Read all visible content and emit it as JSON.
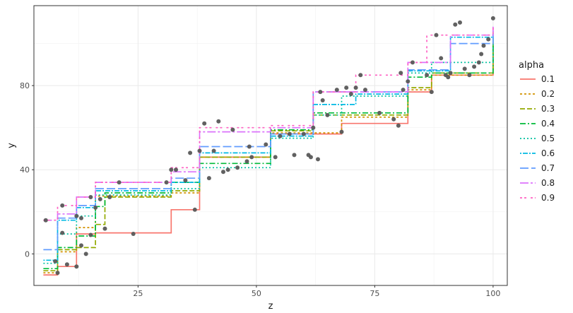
{
  "chart_data": {
    "type": "step",
    "xlabel": "z",
    "ylabel": "y",
    "xlim": [
      3,
      103
    ],
    "ylim": [
      -15,
      118
    ],
    "x_ticks": [
      25,
      50,
      75,
      100
    ],
    "y_ticks": [
      0,
      40,
      80
    ],
    "x_minor_ticks": [
      12.5,
      37.5,
      62.5,
      87.5
    ],
    "y_minor_ticks": [
      -20,
      20,
      60,
      100
    ],
    "grid": true,
    "legend": {
      "title": "alpha",
      "placement": "right",
      "entries": [
        "0.1",
        "0.2",
        "0.3",
        "0.4",
        "0.5",
        "0.6",
        "0.7",
        "0.8",
        "0.9"
      ]
    },
    "points_color": "#595959",
    "points": [
      [
        5.5,
        16
      ],
      [
        7.5,
        -3.5
      ],
      [
        8,
        -9
      ],
      [
        9,
        23
      ],
      [
        9,
        10
      ],
      [
        10,
        -5
      ],
      [
        12,
        18
      ],
      [
        12,
        -6
      ],
      [
        13,
        17
      ],
      [
        13,
        4
      ],
      [
        14,
        0
      ],
      [
        15,
        9
      ],
      [
        15,
        27
      ],
      [
        16,
        22
      ],
      [
        17,
        26
      ],
      [
        18,
        12
      ],
      [
        19,
        27
      ],
      [
        21,
        34
      ],
      [
        24,
        9.5
      ],
      [
        31,
        34
      ],
      [
        32,
        40
      ],
      [
        33,
        40
      ],
      [
        35,
        35
      ],
      [
        36,
        48
      ],
      [
        37,
        21
      ],
      [
        38,
        49
      ],
      [
        39,
        62
      ],
      [
        40,
        36
      ],
      [
        41,
        49
      ],
      [
        42,
        63
      ],
      [
        43,
        39
      ],
      [
        44,
        40
      ],
      [
        45,
        59
      ],
      [
        46,
        41
      ],
      [
        48,
        44
      ],
      [
        48.5,
        51
      ],
      [
        49,
        46
      ],
      [
        52,
        52
      ],
      [
        54,
        46
      ],
      [
        55,
        56
      ],
      [
        57,
        57
      ],
      [
        58,
        47
      ],
      [
        60,
        57
      ],
      [
        61,
        47
      ],
      [
        61.5,
        46
      ],
      [
        62,
        60
      ],
      [
        63,
        45
      ],
      [
        63.5,
        77
      ],
      [
        64,
        73
      ],
      [
        65,
        66
      ],
      [
        67,
        78
      ],
      [
        68,
        58
      ],
      [
        69,
        79
      ],
      [
        70,
        76
      ],
      [
        71,
        79
      ],
      [
        72,
        85
      ],
      [
        73,
        78
      ],
      [
        76,
        67
      ],
      [
        79,
        64
      ],
      [
        80,
        61
      ],
      [
        80.5,
        86
      ],
      [
        81,
        78
      ],
      [
        82,
        82
      ],
      [
        83,
        91
      ],
      [
        86,
        85
      ],
      [
        87,
        77
      ],
      [
        88,
        104
      ],
      [
        89,
        93
      ],
      [
        90,
        85
      ],
      [
        90.5,
        84
      ],
      [
        91,
        86
      ],
      [
        92,
        109
      ],
      [
        93,
        110
      ],
      [
        94,
        88
      ],
      [
        95,
        85
      ],
      [
        96,
        89
      ],
      [
        97,
        91
      ],
      [
        97.5,
        95
      ],
      [
        98,
        99
      ],
      [
        99,
        102
      ],
      [
        100,
        112
      ]
    ],
    "series": [
      {
        "name": "0.1",
        "color": "#F8766D",
        "dash": "solid",
        "x": [
          5,
          8,
          12,
          16,
          32,
          38,
          53,
          68,
          82,
          87,
          100
        ],
        "y": [
          -10,
          -6,
          9.5,
          10,
          21,
          46,
          57,
          62,
          77,
          85,
          100
        ]
      },
      {
        "name": "0.2",
        "color": "#D39200",
        "dash": "3,3",
        "x": [
          5,
          8,
          10,
          12,
          16,
          32,
          38,
          53,
          68,
          82,
          87,
          100
        ],
        "y": [
          -9,
          1,
          1,
          12.5,
          27.5,
          29,
          46,
          57.5,
          65,
          78,
          85,
          101
        ]
      },
      {
        "name": "0.3",
        "color": "#93AA00",
        "dash": "7,3",
        "x": [
          5,
          8,
          12,
          16,
          18,
          32,
          38,
          53,
          62,
          82,
          87,
          100
        ],
        "y": [
          -8,
          2,
          3,
          14,
          27,
          30,
          46,
          58.5,
          66,
          79,
          86,
          102
        ]
      },
      {
        "name": "0.4",
        "color": "#00BA38",
        "dash": "8,3,2,3",
        "x": [
          5,
          8,
          12,
          16,
          18,
          32,
          38,
          53,
          62,
          82,
          87,
          100
        ],
        "y": [
          -7,
          3,
          8.5,
          22.5,
          29,
          34,
          43,
          59,
          67,
          84,
          86,
          103
        ]
      },
      {
        "name": "0.5",
        "color": "#00C19F",
        "dash": "2,3",
        "x": [
          5,
          8,
          12,
          16,
          32,
          38,
          53,
          62,
          68,
          82,
          87,
          100
        ],
        "y": [
          -4.5,
          9.5,
          18,
          28,
          31,
          41,
          55,
          66,
          75,
          86,
          91,
          104
        ]
      },
      {
        "name": "0.6",
        "color": "#00B9E3",
        "dash": "2,2,7,2",
        "x": [
          5,
          8,
          12,
          16,
          32,
          38,
          53,
          62,
          71,
          82,
          91,
          100
        ],
        "y": [
          -3,
          16,
          22,
          30,
          34,
          48,
          56,
          71,
          76,
          87,
          103,
          105
        ]
      },
      {
        "name": "0.7",
        "color": "#619CFF",
        "dash": "12,4",
        "x": [
          5,
          8,
          12,
          16,
          32,
          38,
          53,
          62,
          82,
          91,
          100
        ],
        "y": [
          2,
          17,
          23,
          31,
          36,
          51,
          57,
          77,
          87.5,
          100,
          106
        ]
      },
      {
        "name": "0.8",
        "color": "#DB72FB",
        "dash": "12,3,3,3",
        "x": [
          5,
          8,
          12,
          16,
          32,
          38,
          53,
          62,
          82,
          91,
          100
        ],
        "y": [
          16,
          19,
          27,
          34,
          39,
          58,
          60,
          77,
          91,
          104,
          108
        ]
      },
      {
        "name": "0.9",
        "color": "#FF61C3",
        "dash": "3,3,3,6",
        "x": [
          5,
          8,
          12,
          16,
          32,
          38,
          53,
          62,
          71,
          82,
          86,
          100
        ],
        "y": [
          16,
          23,
          27,
          34,
          41,
          60,
          61,
          77,
          85,
          91,
          104,
          109
        ]
      }
    ]
  }
}
